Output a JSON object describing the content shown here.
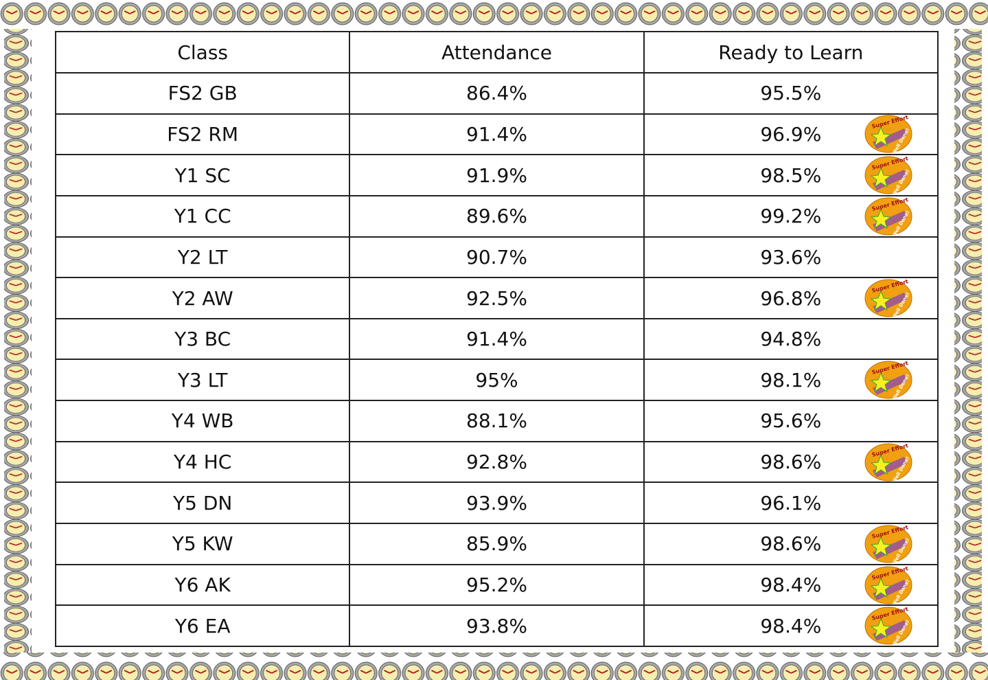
{
  "table": {
    "header": [
      "Class",
      "Attendance",
      "Ready to Learn"
    ],
    "rows": [
      [
        "FS2 GB",
        "86.4%",
        "95.5%"
      ],
      [
        "FS2 RM",
        "91.4%",
        "96.9%"
      ],
      [
        "Y1 SC",
        "91.9%",
        "98.5%"
      ],
      [
        "Y1 CC",
        "89.6%",
        "99.2%"
      ],
      [
        "Y2 LT",
        "90.7%",
        "93.6%"
      ],
      [
        "Y2 AW",
        "92.5%",
        "96.8%"
      ],
      [
        "Y3 BC",
        "91.4%",
        "94.8%"
      ],
      [
        "Y3 LT",
        "95%",
        "98.1%"
      ],
      [
        "Y4 WB",
        "88.1%",
        "95.6%"
      ],
      [
        "Y4 HC",
        "92.8%",
        "98.6%"
      ],
      [
        "Y5 DN",
        "93.9%",
        "96.1%"
      ],
      [
        "Y5 KW",
        "85.9%",
        "98.6%"
      ],
      [
        "Y6 AK",
        "95.2%",
        "98.4%"
      ],
      [
        "Y6 EA",
        "93.8%",
        "98.4%"
      ]
    ],
    "badges": [
      false,
      true,
      true,
      true,
      false,
      true,
      false,
      true,
      false,
      true,
      false,
      true,
      true,
      true
    ]
  },
  "badge": {
    "top": "Super Effort",
    "bottom": "Well Done!"
  }
}
